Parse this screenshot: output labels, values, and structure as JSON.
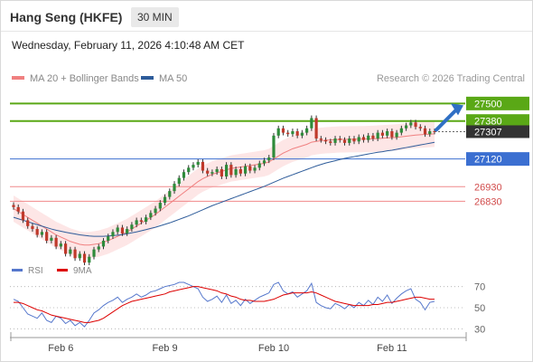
{
  "header": {
    "title": "Hang Seng (HKFE)",
    "interval_badge": "30 MIN",
    "datetime": "Wednesday, February 11, 2026 4:10:48 AM CET"
  },
  "legend": {
    "items": [
      {
        "label": "MA 20 + Bollinger Bands",
        "color": "#f08080"
      },
      {
        "label": "MA 50",
        "color": "#2e5c9a"
      }
    ],
    "credit": "Research © 2026 Trading Central"
  },
  "rsi_legend": {
    "items": [
      {
        "label": "RSI",
        "color": "#5577cc"
      },
      {
        "label": "9MA",
        "color": "#dd0000"
      }
    ]
  },
  "colors": {
    "resistance": "#5aa816",
    "support": "#f0888a",
    "pivot": "#3b6fd1",
    "bollinger_fill": "#fde2e2",
    "candle_up": "#2e8b3a",
    "candle_down": "#c0392b",
    "arrow": "#2f6fc4",
    "current_price_bg": "#333333"
  },
  "chart_data": [
    {
      "type": "line",
      "name": "price",
      "x_labels": [
        "Feb 6",
        "Feb 9",
        "Feb 10",
        "Feb 11"
      ],
      "ylim": [
        26380,
        27620
      ],
      "current_price": 27307,
      "levels": [
        {
          "value": 27500,
          "label": "27500",
          "kind": "resistance"
        },
        {
          "value": 27380,
          "label": "27380",
          "kind": "resistance"
        },
        {
          "value": 27120,
          "label": "27120",
          "kind": "pivot"
        },
        {
          "value": 26930,
          "label": "26930",
          "kind": "support"
        },
        {
          "value": 26830,
          "label": "26830",
          "kind": "support"
        }
      ],
      "close": [
        26790,
        26760,
        26700,
        26660,
        26640,
        26600,
        26620,
        26560,
        26580,
        26520,
        26540,
        26470,
        26500,
        26440,
        26470,
        26410,
        26450,
        26500,
        26520,
        26560,
        26590,
        26620,
        26650,
        26610,
        26640,
        26670,
        26700,
        26690,
        26720,
        26750,
        26780,
        26820,
        26860,
        26900,
        26950,
        26990,
        27030,
        27060,
        27080,
        27100,
        27040,
        27020,
        27030,
        27050,
        27000,
        27080,
        27010,
        27050,
        27020,
        27070,
        27040,
        27060,
        27090,
        27110,
        27130,
        27280,
        27330,
        27300,
        27290,
        27310,
        27280,
        27300,
        27330,
        27400,
        27260,
        27250,
        27240,
        27230,
        27260,
        27250,
        27230,
        27260,
        27240,
        27270,
        27250,
        27280,
        27260,
        27300,
        27280,
        27310,
        27270,
        27300,
        27330,
        27350,
        27370,
        27340,
        27330,
        27290,
        27310,
        27307
      ],
      "ma20": [
        26780,
        26760,
        26740,
        26720,
        26700,
        26680,
        26660,
        26640,
        26620,
        26600,
        26585,
        26570,
        26555,
        26545,
        26535,
        26530,
        26530,
        26535,
        26540,
        26550,
        26560,
        26575,
        26590,
        26605,
        26620,
        26640,
        26660,
        26680,
        26700,
        26720,
        26740,
        26765,
        26790,
        26815,
        26840,
        26865,
        26890,
        26915,
        26940,
        26965,
        26985,
        27000,
        27015,
        27025,
        27035,
        27045,
        27055,
        27060,
        27065,
        27070,
        27075,
        27080,
        27085,
        27090,
        27100,
        27120,
        27140,
        27160,
        27175,
        27190,
        27200,
        27210,
        27220,
        27235,
        27240,
        27245,
        27248,
        27250,
        27252,
        27254,
        27254,
        27255,
        27255,
        27256,
        27256,
        27257,
        27258,
        27260,
        27262,
        27264,
        27266,
        27268,
        27272,
        27276,
        27280,
        27284,
        27286,
        27288,
        27290,
        27292
      ],
      "ma50": [
        26720,
        26710,
        26700,
        26690,
        26680,
        26670,
        26660,
        26650,
        26640,
        26632,
        26625,
        26618,
        26612,
        26606,
        26600,
        26596,
        26592,
        26590,
        26590,
        26590,
        26592,
        26595,
        26598,
        26602,
        26608,
        26614,
        26620,
        26628,
        26636,
        26644,
        26652,
        26662,
        26672,
        26682,
        26694,
        26706,
        26718,
        26730,
        26744,
        26758,
        26772,
        26786,
        26800,
        26812,
        26824,
        26836,
        26848,
        26860,
        26872,
        26884,
        26896,
        26908,
        26920,
        26932,
        26946,
        26960,
        26974,
        26988,
        27000,
        27012,
        27024,
        27036,
        27048,
        27060,
        27072,
        27082,
        27092,
        27100,
        27108,
        27116,
        27124,
        27130,
        27136,
        27142,
        27148,
        27154,
        27160,
        27166,
        27170,
        27176,
        27180,
        27186,
        27192,
        27198,
        27204,
        27210,
        27216,
        27222,
        27228,
        27234
      ]
    },
    {
      "type": "line",
      "name": "RSI",
      "ylim": [
        20,
        80
      ],
      "y_ticks": [
        70,
        50,
        30
      ],
      "rsi": [
        58,
        56,
        50,
        44,
        42,
        40,
        45,
        38,
        36,
        42,
        40,
        35,
        38,
        33,
        36,
        32,
        38,
        45,
        48,
        52,
        55,
        57,
        60,
        55,
        58,
        60,
        63,
        60,
        62,
        65,
        66,
        68,
        70,
        71,
        72,
        74,
        74,
        72,
        70,
        68,
        60,
        56,
        58,
        61,
        55,
        62,
        54,
        57,
        52,
        58,
        54,
        57,
        60,
        62,
        64,
        72,
        74,
        66,
        63,
        65,
        60,
        63,
        66,
        73,
        55,
        52,
        50,
        49,
        54,
        52,
        49,
        53,
        50,
        55,
        52,
        57,
        53,
        60,
        56,
        62,
        54,
        59,
        63,
        66,
        68,
        58,
        55,
        48,
        55,
        56
      ],
      "ma9": [
        55,
        55,
        54,
        52,
        50,
        48,
        47,
        45,
        43,
        42,
        41,
        40,
        39,
        38,
        37,
        36,
        36,
        37,
        38,
        40,
        43,
        46,
        49,
        52,
        54,
        56,
        57,
        58,
        59,
        60,
        61,
        62,
        63,
        65,
        66,
        67,
        68,
        69,
        70,
        70,
        69,
        68,
        67,
        66,
        64,
        63,
        61,
        60,
        58,
        57,
        57,
        56,
        56,
        56,
        57,
        58,
        60,
        62,
        63,
        64,
        64,
        64,
        64,
        65,
        64,
        62,
        60,
        58,
        56,
        55,
        54,
        53,
        52,
        52,
        52,
        52,
        53,
        53,
        54,
        55,
        55,
        56,
        57,
        58,
        59,
        60,
        60,
        59,
        58,
        58
      ]
    }
  ]
}
